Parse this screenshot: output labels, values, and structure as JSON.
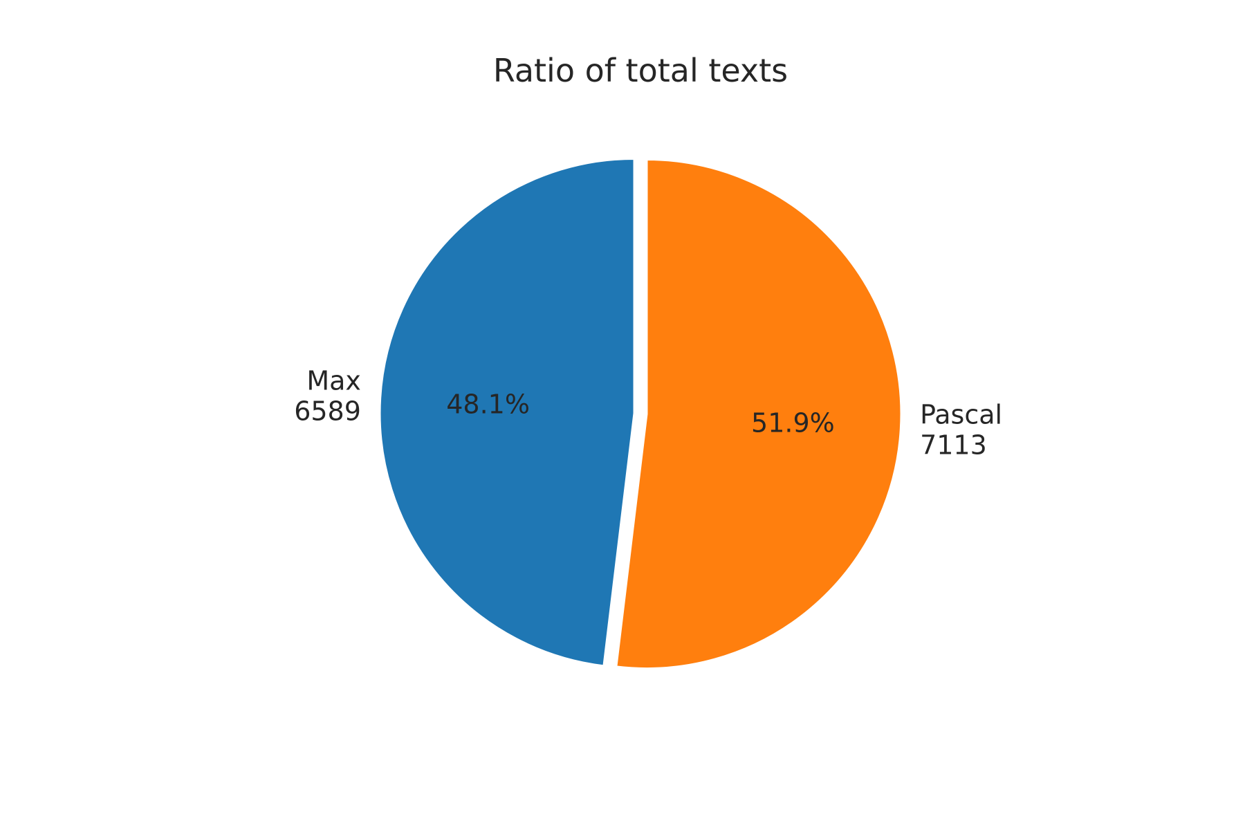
{
  "chart_data": {
    "type": "pie",
    "title": "Ratio of total texts",
    "slices": [
      {
        "name": "Max",
        "value": 6589,
        "label_line1": "Max",
        "label_line2": "6589",
        "pct_label": "48.1%",
        "color": "#1f77b4"
      },
      {
        "name": "Pascal",
        "value": 7113,
        "label_line1": "Pascal",
        "label_line2": "7113",
        "pct_label": "51.9%",
        "color": "#ff7f0e"
      }
    ],
    "start_angle_deg": 90,
    "direction": "counterclockwise",
    "exploded": true
  }
}
